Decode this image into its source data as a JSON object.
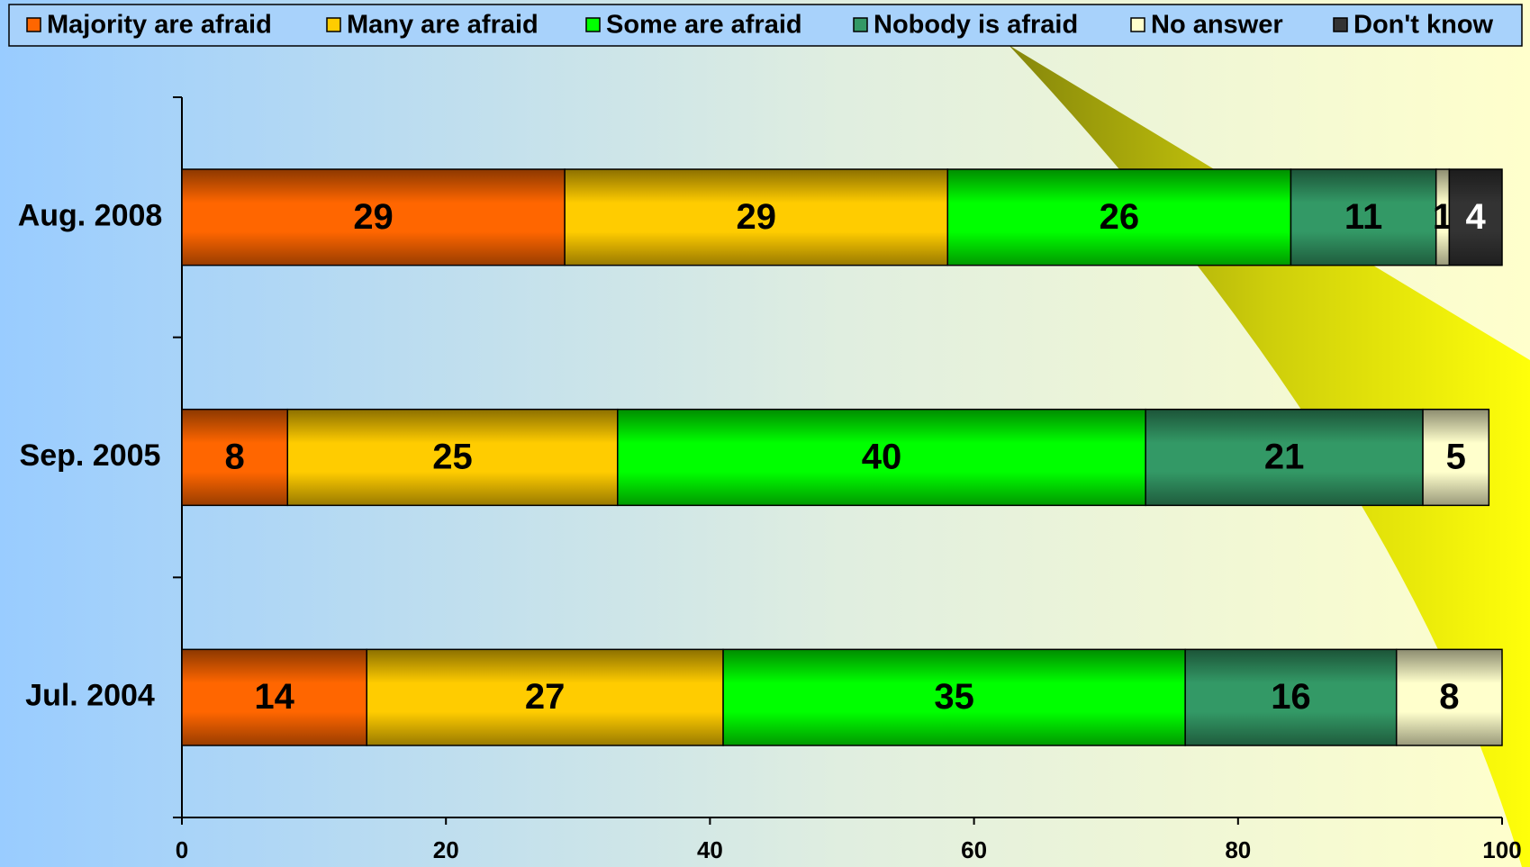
{
  "chart_data": {
    "type": "stacked-barh",
    "categories": [
      "Aug. 2008",
      "Sep. 2005",
      "Jul. 2004"
    ],
    "series": [
      {
        "name": "Majority are afraid",
        "color": "#ff6600",
        "values": [
          29,
          8,
          14
        ]
      },
      {
        "name": "Many are afraid",
        "color": "#ffcc00",
        "values": [
          29,
          25,
          27
        ]
      },
      {
        "name": "Some are afraid",
        "color": "#00ff00",
        "values": [
          26,
          40,
          35
        ]
      },
      {
        "name": "Nobody is afraid",
        "color": "#339966",
        "values": [
          11,
          21,
          16
        ]
      },
      {
        "name": "No answer",
        "color": "#ffffcc",
        "values": [
          1,
          5,
          8
        ]
      },
      {
        "name": "Don't know",
        "color": "#333333",
        "values": [
          4,
          null,
          null
        ]
      }
    ],
    "xlim": [
      0,
      100
    ],
    "xticks": [
      0,
      20,
      40,
      60,
      80,
      100
    ],
    "legend": "top"
  }
}
